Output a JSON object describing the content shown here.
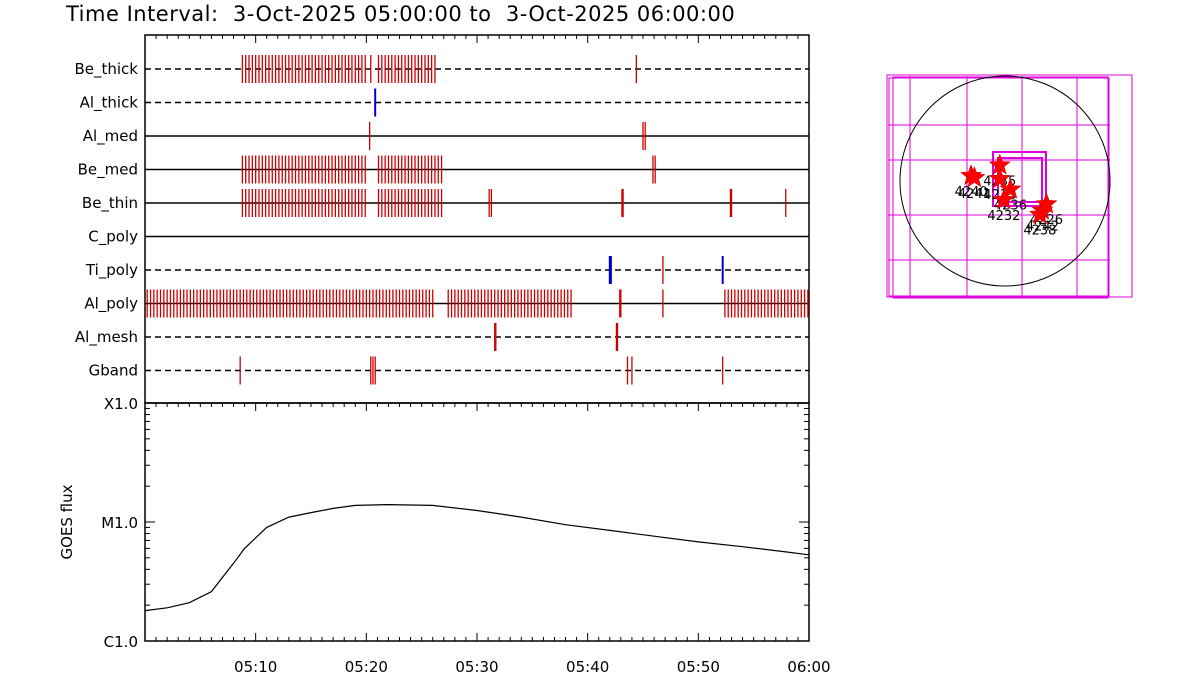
{
  "title": "Time Interval:  3-Oct-2025 05:00:00 to  3-Oct-2025 06:00:00",
  "chart_data": [
    {
      "type": "event-timeline",
      "x_range": [
        "05:00",
        "06:00"
      ],
      "rows": [
        {
          "name": "Be_thick",
          "line": "dashed",
          "events": [
            8.8,
            9.1,
            9.4,
            9.7,
            10.0,
            10.3,
            10.6,
            10.9,
            11.2,
            11.5,
            11.8,
            12.1,
            12.4,
            12.7,
            13.0,
            13.3,
            13.6,
            13.9,
            14.2,
            14.5,
            14.8,
            15.1,
            15.4,
            15.7,
            16.0,
            16.3,
            16.6,
            16.9,
            17.2,
            17.5,
            17.8,
            18.1,
            18.4,
            18.7,
            19.0,
            19.3,
            19.6,
            19.9,
            20.4,
            21.1,
            21.4,
            21.7,
            22.0,
            22.3,
            22.6,
            22.9,
            23.2,
            23.5,
            23.8,
            24.1,
            24.4,
            24.7,
            25.0,
            25.3,
            25.6,
            25.9,
            26.2,
            44.4
          ],
          "blue": []
        },
        {
          "name": "Al_thick",
          "line": "dashed",
          "events": [],
          "blue": [
            20.8
          ]
        },
        {
          "name": "Al_med",
          "line": "solid",
          "events": [
            20.3,
            45.0,
            45.2
          ],
          "blue": []
        },
        {
          "name": "Be_med",
          "line": "solid",
          "events": [
            8.8,
            9.1,
            9.4,
            9.7,
            10.0,
            10.3,
            10.6,
            10.9,
            11.2,
            11.5,
            11.8,
            12.1,
            12.4,
            12.7,
            13.0,
            13.3,
            13.6,
            13.9,
            14.2,
            14.5,
            14.8,
            15.1,
            15.4,
            15.7,
            16.0,
            16.3,
            16.6,
            16.9,
            17.2,
            17.5,
            17.8,
            18.1,
            18.4,
            18.7,
            19.0,
            19.3,
            19.6,
            19.9,
            21.1,
            21.4,
            21.7,
            22.0,
            22.3,
            22.6,
            22.9,
            23.2,
            23.5,
            23.8,
            24.1,
            24.4,
            24.7,
            25.0,
            25.3,
            25.6,
            25.9,
            26.2,
            26.5,
            26.8,
            45.9,
            46.1
          ],
          "blue": []
        },
        {
          "name": "Be_thin",
          "line": "solid",
          "events": [
            8.8,
            9.1,
            9.4,
            9.7,
            10.0,
            10.3,
            10.6,
            10.9,
            11.2,
            11.5,
            11.8,
            12.1,
            12.4,
            12.7,
            13.0,
            13.3,
            13.6,
            13.9,
            14.2,
            14.5,
            14.8,
            15.1,
            15.4,
            15.7,
            16.0,
            16.3,
            16.6,
            16.9,
            17.2,
            17.5,
            17.8,
            18.1,
            18.4,
            18.7,
            19.0,
            19.3,
            19.6,
            19.9,
            21.1,
            21.4,
            21.7,
            22.0,
            22.3,
            22.6,
            22.9,
            23.2,
            23.5,
            23.8,
            24.1,
            24.4,
            24.7,
            25.0,
            25.3,
            25.6,
            25.9,
            26.2,
            26.5,
            26.8,
            31.1,
            31.3,
            43.1,
            43.2,
            52.9,
            53.0,
            57.9
          ],
          "blue": []
        },
        {
          "name": "C_poly",
          "line": "solid",
          "events": [],
          "blue": []
        },
        {
          "name": "Ti_poly",
          "line": "dashed",
          "events": [
            46.8
          ],
          "blue": [
            42.0,
            42.1,
            52.2
          ]
        },
        {
          "name": "Al_poly",
          "line": "solid",
          "events": [
            0.2,
            0.5,
            0.8,
            1.1,
            1.4,
            1.7,
            2.0,
            2.3,
            2.6,
            2.9,
            3.2,
            3.5,
            3.8,
            4.1,
            4.4,
            4.7,
            5.0,
            5.3,
            5.6,
            5.9,
            6.2,
            6.5,
            6.8,
            7.1,
            7.4,
            7.7,
            8.0,
            8.3,
            8.6,
            8.9,
            9.2,
            9.5,
            9.8,
            10.1,
            10.4,
            10.7,
            11.0,
            11.3,
            11.6,
            11.9,
            12.2,
            12.5,
            12.8,
            13.1,
            13.4,
            13.7,
            14.0,
            14.3,
            14.6,
            14.9,
            15.2,
            15.5,
            15.8,
            16.1,
            16.4,
            16.7,
            17.0,
            17.3,
            17.6,
            17.9,
            18.2,
            18.5,
            18.8,
            19.1,
            19.4,
            19.7,
            20.0,
            20.3,
            20.6,
            20.9,
            21.2,
            21.5,
            21.8,
            22.1,
            22.4,
            22.7,
            23.0,
            23.3,
            23.6,
            23.9,
            24.2,
            24.5,
            24.8,
            25.1,
            25.4,
            25.7,
            26.0,
            27.4,
            27.7,
            28.0,
            28.3,
            28.6,
            28.9,
            29.2,
            29.5,
            29.8,
            30.1,
            30.4,
            30.7,
            31.0,
            31.3,
            31.6,
            31.9,
            32.2,
            32.5,
            32.8,
            33.1,
            33.4,
            33.7,
            34.0,
            34.3,
            34.6,
            34.9,
            35.2,
            35.5,
            35.8,
            36.1,
            36.4,
            36.7,
            37.0,
            37.3,
            37.6,
            37.9,
            38.2,
            38.5,
            42.9,
            43.0,
            46.8,
            52.4,
            52.7,
            53.0,
            53.3,
            53.6,
            53.9,
            54.2,
            54.5,
            54.8,
            55.1,
            55.4,
            55.7,
            56.0,
            56.3,
            56.6,
            56.9,
            57.2,
            57.5,
            57.8,
            58.1,
            58.4,
            58.7,
            59.0,
            59.3,
            59.6,
            59.9
          ],
          "blue": []
        },
        {
          "name": "Al_mesh",
          "line": "dashed",
          "events": [
            31.6,
            31.7,
            42.6,
            42.7
          ],
          "blue": []
        },
        {
          "name": "Gband",
          "line": "dashed",
          "events": [
            8.6,
            20.4,
            20.6,
            20.8,
            43.6,
            44.0,
            52.2
          ],
          "blue": []
        }
      ]
    },
    {
      "type": "line",
      "ylabel": "GOES flux",
      "yscale": "log",
      "ylim": [
        1e-06,
        0.0001
      ],
      "ytick_labels": [
        "C1.0",
        "M1.0",
        "X1.0"
      ],
      "xtick_labels": [
        "05:10",
        "05:20",
        "05:30",
        "05:40",
        "05:50",
        "06:00"
      ],
      "series": [
        {
          "values": [
            {
              "x": "05:00",
              "y": 1.8e-06
            },
            {
              "x": "05:02",
              "y": 1.9e-06
            },
            {
              "x": "05:04",
              "y": 2.1e-06
            },
            {
              "x": "05:06",
              "y": 2.6e-06
            },
            {
              "x": "05:08",
              "y": 4.5e-06
            },
            {
              "x": "05:09",
              "y": 6e-06
            },
            {
              "x": "05:11",
              "y": 9e-06
            },
            {
              "x": "05:13",
              "y": 1.1e-05
            },
            {
              "x": "05:15",
              "y": 1.2e-05
            },
            {
              "x": "05:17",
              "y": 1.3e-05
            },
            {
              "x": "05:19",
              "y": 1.38e-05
            },
            {
              "x": "05:22",
              "y": 1.4e-05
            },
            {
              "x": "05:26",
              "y": 1.38e-05
            },
            {
              "x": "05:30",
              "y": 1.25e-05
            },
            {
              "x": "05:34",
              "y": 1.1e-05
            },
            {
              "x": "05:38",
              "y": 9.5e-06
            },
            {
              "x": "05:42",
              "y": 8.5e-06
            },
            {
              "x": "05:46",
              "y": 7.6e-06
            },
            {
              "x": "05:50",
              "y": 6.8e-06
            },
            {
              "x": "05:54",
              "y": 6.2e-06
            },
            {
              "x": "05:58",
              "y": 5.6e-06
            },
            {
              "x": "06:00",
              "y": 5.3e-06
            }
          ]
        }
      ]
    },
    {
      "type": "scatter",
      "note_kind": "solar-disk-map",
      "points": [
        {
          "label": "4240",
          "x": 0.38,
          "y": 0.05
        },
        {
          "label": "4241",
          "x": 0.42,
          "y": 0.03
        },
        {
          "label": "4235",
          "x": 0.73,
          "y": 0.15
        },
        {
          "label": "4233",
          "x": 0.73,
          "y": 0.02
        },
        {
          "label": "4236",
          "x": 0.86,
          "y": -0.08
        },
        {
          "label": "4232",
          "x": 0.78,
          "y": -0.18
        },
        {
          "label": "4242",
          "x": 1.25,
          "y": -0.28
        },
        {
          "label": "4226",
          "x": 1.3,
          "y": -0.22
        },
        {
          "label": "4238",
          "x": 1.22,
          "y": -0.32
        }
      ]
    }
  ]
}
